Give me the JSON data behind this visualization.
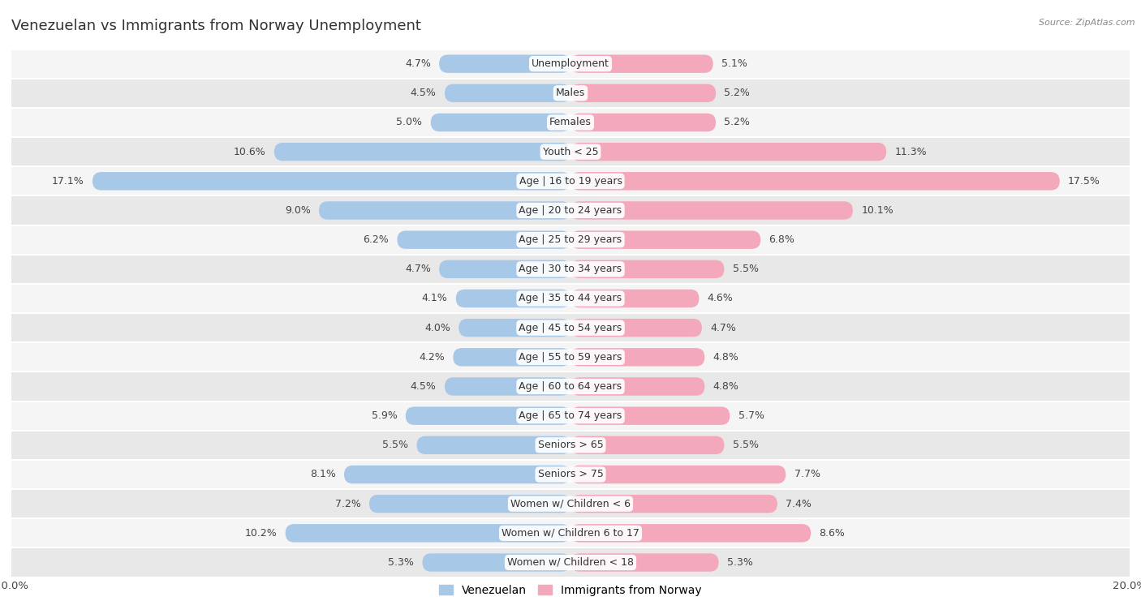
{
  "title": "Venezuelan vs Immigrants from Norway Unemployment",
  "source": "Source: ZipAtlas.com",
  "categories": [
    "Unemployment",
    "Males",
    "Females",
    "Youth < 25",
    "Age | 16 to 19 years",
    "Age | 20 to 24 years",
    "Age | 25 to 29 years",
    "Age | 30 to 34 years",
    "Age | 35 to 44 years",
    "Age | 45 to 54 years",
    "Age | 55 to 59 years",
    "Age | 60 to 64 years",
    "Age | 65 to 74 years",
    "Seniors > 65",
    "Seniors > 75",
    "Women w/ Children < 6",
    "Women w/ Children 6 to 17",
    "Women w/ Children < 18"
  ],
  "venezuelan": [
    4.7,
    4.5,
    5.0,
    10.6,
    17.1,
    9.0,
    6.2,
    4.7,
    4.1,
    4.0,
    4.2,
    4.5,
    5.9,
    5.5,
    8.1,
    7.2,
    10.2,
    5.3
  ],
  "norway": [
    5.1,
    5.2,
    5.2,
    11.3,
    17.5,
    10.1,
    6.8,
    5.5,
    4.6,
    4.7,
    4.8,
    4.8,
    5.7,
    5.5,
    7.7,
    7.4,
    8.6,
    5.3
  ],
  "venezuelan_color": "#a8c8e8",
  "norway_color": "#f4a8bc",
  "bar_height": 0.62,
  "xlim": 20.0,
  "row_bg_light": "#f5f5f5",
  "row_bg_dark": "#e8e8e8",
  "label_fontsize": 9,
  "value_fontsize": 9,
  "title_fontsize": 13,
  "legend_label_venezuelan": "Venezuelan",
  "legend_label_norway": "Immigrants from Norway"
}
